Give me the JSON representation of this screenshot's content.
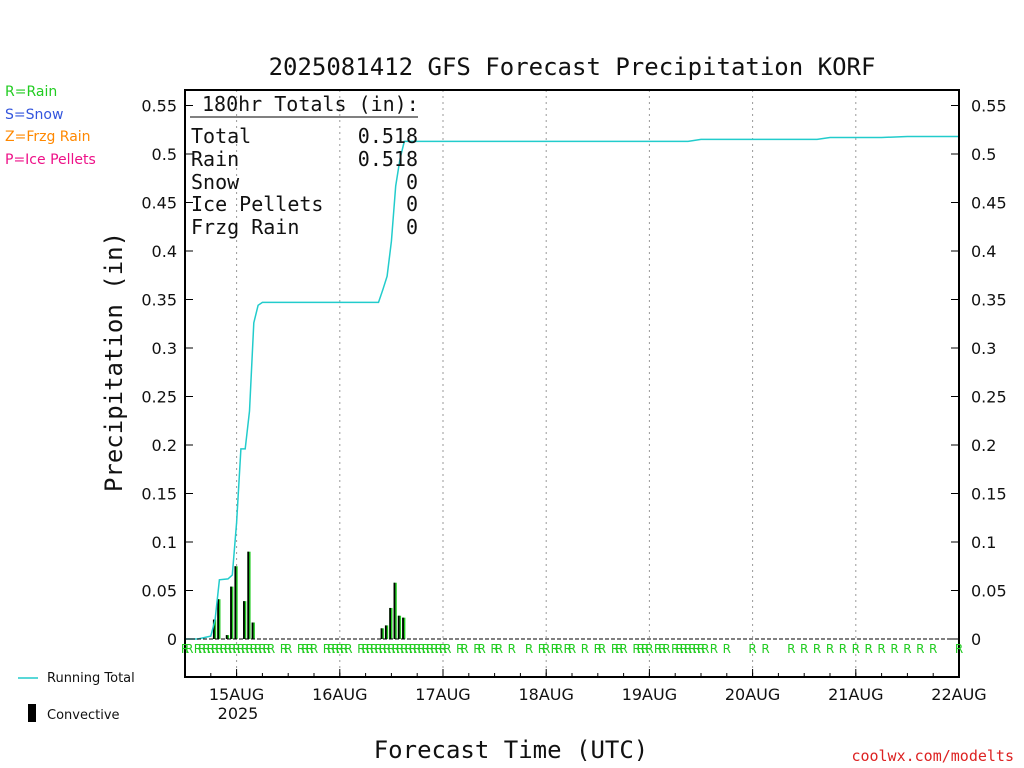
{
  "title": "2025081412 GFS Forecast Precipitation KORF",
  "left_legend": [
    {
      "text": "R=Rain",
      "color": "#22cc22"
    },
    {
      "text": "S=Snow",
      "color": "#3355dd"
    },
    {
      "text": "Z=Frzg Rain",
      "color": "#ff8800"
    },
    {
      "text": "P=Ice Pellets",
      "color": "#ee1188"
    }
  ],
  "totals_box": {
    "header": "180hr Totals (in):",
    "rows": [
      {
        "label": "Total",
        "value": "0.518"
      },
      {
        "label": "Rain",
        "value": "0.518"
      },
      {
        "label": "Snow",
        "value": "0"
      },
      {
        "label": "Ice Pellets",
        "value": "0"
      },
      {
        "label": "Frzg Rain",
        "value": "0"
      }
    ]
  },
  "bottom_legend": {
    "running_total": "Running Total",
    "convective": "Convective"
  },
  "xlabel": "Forecast Time (UTC)",
  "ylabel": "Precipitation (in)",
  "watermark": "coolwx.com/modelts",
  "year_label": "2025",
  "colors": {
    "running_total": "#22cccc",
    "precip_bar": "#22cc22",
    "convective": "#000000",
    "grid": "#999999"
  },
  "chart_data": {
    "type": "bar",
    "title": "2025081412 GFS Forecast Precipitation KORF",
    "xlabel": "Forecast Time (UTC)",
    "ylabel": "Precipitation (in)",
    "x_unit": "UTC",
    "xlim": [
      "2025-08-14 12:00",
      "2025-08-22 00:00"
    ],
    "ylim": [
      0,
      0.57
    ],
    "x_ticks": [
      {
        "label": "15AUG",
        "time": "2025-08-15 00:00"
      },
      {
        "label": "16AUG",
        "time": "2025-08-16 00:00"
      },
      {
        "label": "17AUG",
        "time": "2025-08-17 00:00"
      },
      {
        "label": "18AUG",
        "time": "2025-08-18 00:00"
      },
      {
        "label": "19AUG",
        "time": "2025-08-19 00:00"
      },
      {
        "label": "20AUG",
        "time": "2025-08-20 00:00"
      },
      {
        "label": "21AUG",
        "time": "2025-08-21 00:00"
      },
      {
        "label": "22AUG",
        "time": "2025-08-22 00:00"
      }
    ],
    "y_ticks": [
      "0",
      "0.05",
      "0.1",
      "0.15",
      "0.2",
      "0.25",
      "0.3",
      "0.35",
      "0.4",
      "0.45",
      "0.5",
      "0.55"
    ],
    "y_tick_values": [
      0,
      0.05,
      0.1,
      0.15,
      0.2,
      0.25,
      0.3,
      0.35,
      0.4,
      0.45,
      0.5,
      0.55
    ],
    "grid": "vertical dotted",
    "series": [
      {
        "name": "Running Total",
        "type": "line",
        "points": [
          [
            "2025-08-14 12:00",
            0
          ],
          [
            "2025-08-14 15:00",
            0
          ],
          [
            "2025-08-14 18:00",
            0.003
          ],
          [
            "2025-08-14 19:00",
            0.02
          ],
          [
            "2025-08-14 20:00",
            0.061
          ],
          [
            "2025-08-14 22:00",
            0.062
          ],
          [
            "2025-08-14 23:00",
            0.066
          ],
          [
            "2025-08-15 00:00",
            0.12
          ],
          [
            "2025-08-15 01:00",
            0.196
          ],
          [
            "2025-08-15 02:00",
            0.196
          ],
          [
            "2025-08-15 03:00",
            0.235
          ],
          [
            "2025-08-15 04:00",
            0.326
          ],
          [
            "2025-08-15 05:00",
            0.344
          ],
          [
            "2025-08-15 06:00",
            0.347
          ],
          [
            "2025-08-16 09:00",
            0.347
          ],
          [
            "2025-08-16 10:00",
            0.36
          ],
          [
            "2025-08-16 11:00",
            0.374
          ],
          [
            "2025-08-16 12:00",
            0.41
          ],
          [
            "2025-08-16 13:00",
            0.467
          ],
          [
            "2025-08-16 14:00",
            0.495
          ],
          [
            "2025-08-16 15:00",
            0.513
          ],
          [
            "2025-08-19 09:00",
            0.513
          ],
          [
            "2025-08-19 12:00",
            0.515
          ],
          [
            "2025-08-20 15:00",
            0.515
          ],
          [
            "2025-08-20 18:00",
            0.517
          ],
          [
            "2025-08-21 06:00",
            0.517
          ],
          [
            "2025-08-21 12:00",
            0.518
          ],
          [
            "2025-08-22 00:00",
            0.518
          ]
        ]
      },
      {
        "name": "Convective",
        "type": "bar",
        "points": [
          [
            "2025-08-14 19:00",
            0.02
          ],
          [
            "2025-08-14 20:00",
            0.041
          ],
          [
            "2025-08-14 22:00",
            0.004
          ],
          [
            "2025-08-14 23:00",
            0.054
          ],
          [
            "2025-08-15 00:00",
            0.075
          ],
          [
            "2025-08-15 02:00",
            0.039
          ],
          [
            "2025-08-15 03:00",
            0.09
          ],
          [
            "2025-08-15 04:00",
            0.017
          ],
          [
            "2025-08-16 10:00",
            0.011
          ],
          [
            "2025-08-16 11:00",
            0.014
          ],
          [
            "2025-08-16 12:00",
            0.032
          ],
          [
            "2025-08-16 13:00",
            0.058
          ],
          [
            "2025-08-16 14:00",
            0.024
          ],
          [
            "2025-08-16 15:00",
            0.022
          ]
        ]
      }
    ],
    "precip_type_letters": {
      "letter": "R",
      "times": [
        "2025-08-14 12:00",
        "2025-08-14 13:00",
        "2025-08-14 15:00",
        "2025-08-14 16:00",
        "2025-08-14 17:00",
        "2025-08-14 18:00",
        "2025-08-14 19:00",
        "2025-08-14 20:00",
        "2025-08-14 21:00",
        "2025-08-14 22:00",
        "2025-08-14 23:00",
        "2025-08-15 00:00",
        "2025-08-15 01:00",
        "2025-08-15 02:00",
        "2025-08-15 03:00",
        "2025-08-15 04:00",
        "2025-08-15 05:00",
        "2025-08-15 06:00",
        "2025-08-15 07:00",
        "2025-08-15 08:00",
        "2025-08-15 11:00",
        "2025-08-15 12:00",
        "2025-08-15 15:00",
        "2025-08-15 16:00",
        "2025-08-15 17:00",
        "2025-08-15 18:00",
        "2025-08-15 21:00",
        "2025-08-15 22:00",
        "2025-08-15 23:00",
        "2025-08-16 00:00",
        "2025-08-16 01:00",
        "2025-08-16 02:00",
        "2025-08-16 05:00",
        "2025-08-16 06:00",
        "2025-08-16 07:00",
        "2025-08-16 08:00",
        "2025-08-16 09:00",
        "2025-08-16 10:00",
        "2025-08-16 11:00",
        "2025-08-16 12:00",
        "2025-08-16 13:00",
        "2025-08-16 14:00",
        "2025-08-16 15:00",
        "2025-08-16 16:00",
        "2025-08-16 17:00",
        "2025-08-16 18:00",
        "2025-08-16 19:00",
        "2025-08-16 20:00",
        "2025-08-16 21:00",
        "2025-08-16 22:00",
        "2025-08-16 23:00",
        "2025-08-17 00:00",
        "2025-08-17 01:00",
        "2025-08-17 04:00",
        "2025-08-17 05:00",
        "2025-08-17 08:00",
        "2025-08-17 09:00",
        "2025-08-17 12:00",
        "2025-08-17 13:00",
        "2025-08-17 16:00",
        "2025-08-17 20:00",
        "2025-08-17 23:00",
        "2025-08-18 00:00",
        "2025-08-18 02:00",
        "2025-08-18 03:00",
        "2025-08-18 05:00",
        "2025-08-18 06:00",
        "2025-08-18 09:00",
        "2025-08-18 12:00",
        "2025-08-18 13:00",
        "2025-08-18 16:00",
        "2025-08-18 17:00",
        "2025-08-18 18:00",
        "2025-08-18 21:00",
        "2025-08-18 22:00",
        "2025-08-18 23:00",
        "2025-08-19 00:00",
        "2025-08-19 02:00",
        "2025-08-19 03:00",
        "2025-08-19 04:00",
        "2025-08-19 06:00",
        "2025-08-19 07:00",
        "2025-08-19 08:00",
        "2025-08-19 09:00",
        "2025-08-19 10:00",
        "2025-08-19 11:00",
        "2025-08-19 12:00",
        "2025-08-19 13:00",
        "2025-08-19 15:00",
        "2025-08-19 18:00",
        "2025-08-20 00:00",
        "2025-08-20 03:00",
        "2025-08-20 09:00",
        "2025-08-20 12:00",
        "2025-08-20 15:00",
        "2025-08-20 18:00",
        "2025-08-20 21:00",
        "2025-08-21 00:00",
        "2025-08-21 03:00",
        "2025-08-21 06:00",
        "2025-08-21 09:00",
        "2025-08-21 12:00",
        "2025-08-21 15:00",
        "2025-08-21 18:00",
        "2025-08-22 00:00"
      ]
    }
  }
}
